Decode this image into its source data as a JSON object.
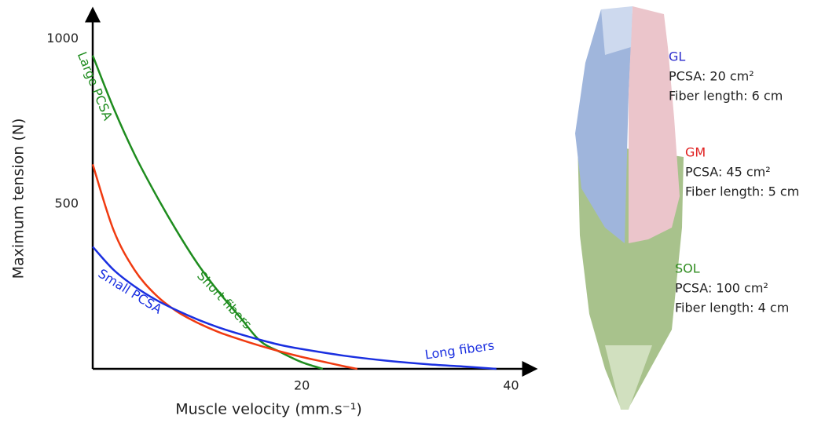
{
  "chart_data": {
    "type": "line",
    "ylabel": "Maximum tension (N)",
    "xlabel": "Muscle velocity (mm.s⁻¹)",
    "xlim": [
      0,
      42
    ],
    "ylim": [
      0,
      1080
    ],
    "xticks": [
      20,
      40
    ],
    "yticks": [
      500,
      1000
    ],
    "series": [
      {
        "color": "#1e8c1e",
        "x": [
          0,
          2,
          4,
          6,
          8,
          10,
          12,
          14,
          16,
          18,
          20,
          22
        ],
        "values": [
          950,
          790,
          650,
          530,
          420,
          320,
          235,
          160,
          85,
          50,
          20,
          0
        ]
      },
      {
        "color": "#f03a10",
        "x": [
          0,
          2,
          4,
          6,
          8,
          10,
          12,
          14,
          16,
          18,
          20,
          22,
          24,
          25.3
        ],
        "values": [
          620,
          420,
          300,
          225,
          175,
          140,
          112,
          90,
          70,
          52,
          36,
          22,
          8,
          0
        ]
      },
      {
        "color": "#1a2fe0",
        "x": [
          0,
          2,
          4,
          6,
          8,
          10,
          12,
          14,
          16,
          18,
          20,
          24,
          28,
          32,
          36,
          38.6
        ],
        "values": [
          370,
          300,
          250,
          210,
          178,
          150,
          126,
          106,
          88,
          72,
          60,
          40,
          25,
          14,
          6,
          0
        ]
      }
    ],
    "annotations": [
      {
        "text": "Large  PCSA",
        "color": "#1e8c1e"
      },
      {
        "text": "Short fibers",
        "color": "#1e8c1e"
      },
      {
        "text": "Small PCSA",
        "color": "#1a2fe0"
      },
      {
        "text": "Long fibers",
        "color": "#1a2fe0"
      }
    ]
  },
  "muscles": [
    {
      "name": "GL",
      "color": "#2a2acc",
      "pcsa": "PCSA: 20 cm²",
      "fiber": "Fiber length: 6 cm"
    },
    {
      "name": "GM",
      "color": "#e02020",
      "pcsa": "PCSA: 45 cm²",
      "fiber": "Fiber length: 5 cm"
    },
    {
      "name": "SOL",
      "color": "#2e8b1e",
      "pcsa": "PCSA: 100 cm²",
      "fiber": "Fiber length: 4 cm"
    }
  ]
}
